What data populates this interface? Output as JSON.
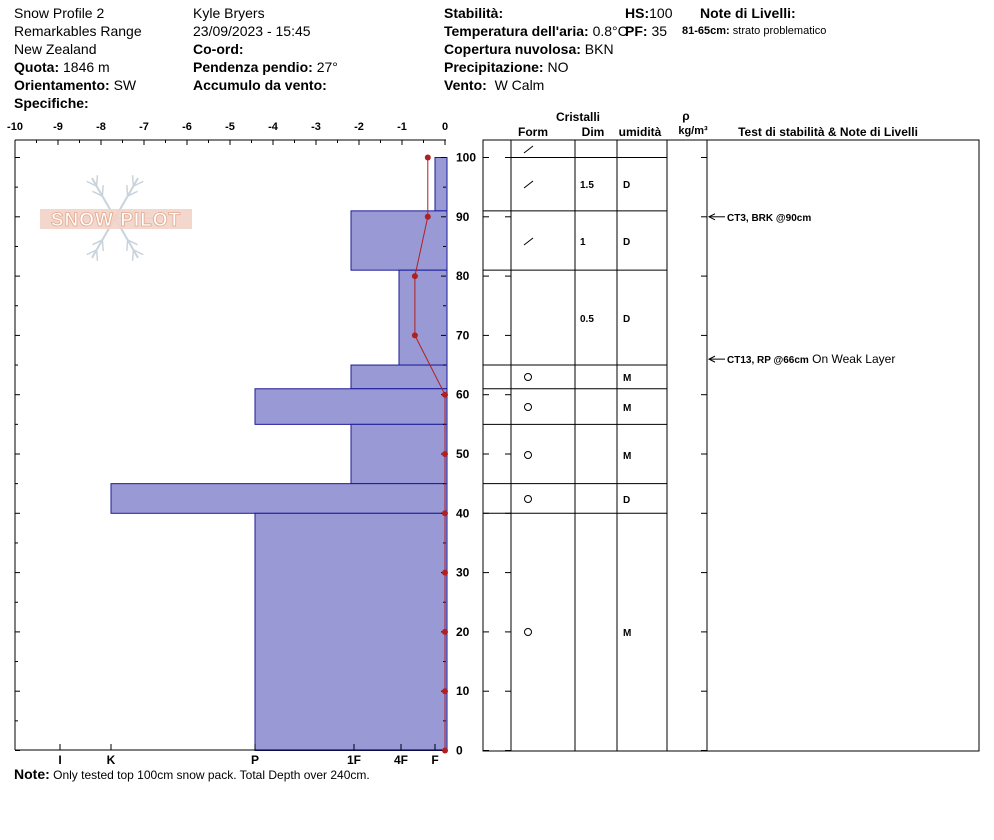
{
  "header": {
    "profile_name": "Snow Profile 2",
    "location": "Remarkables Range",
    "country": "New Zealand",
    "quota_label": "Quota:",
    "quota_value": "1846 m",
    "orient_label": "Orientamento:",
    "orient_value": "SW",
    "specifiche_label": "Specifiche:",
    "observer": "Kyle Bryers",
    "datetime": "23/09/2023 - 15:45",
    "coord_label": "Co-ord:",
    "slope_label": "Pendenza pendio:",
    "slope_value": "27°",
    "wind_load_label": "Accumulo da vento:",
    "stability_label": "Stabilità:",
    "air_temp_label": "Temperatura dell'aria:",
    "air_temp_value": "0.8°C",
    "cloud_label": "Copertura nuvolosa:",
    "cloud_value": "BKN",
    "precip_label": "Precipitazione:",
    "precip_value": "NO",
    "wind_label": "Vento:",
    "wind_value": "W Calm",
    "hs_label": "HS:",
    "hs_value": "100",
    "pf_label": "PF:",
    "pf_value": "35",
    "layer_notes_label": "Note di Livelli:",
    "layer_note_range": "81-65cm:",
    "layer_note_text": "strato problematico"
  },
  "watermark": "SNOW PILOT",
  "note_label": "Note:",
  "note_text": "Only tested top 100cm snow pack. Total Depth over 240cm.",
  "table_headers": {
    "crystals": "Cristalli",
    "form": "Form",
    "size": "Dim",
    "moisture": "umidità",
    "rho": "ρ",
    "density_unit": "kg/m³",
    "tests": "Test di stabilità & Note di Livelli"
  },
  "colors": {
    "hardness_fill": "#9999d6",
    "hardness_stroke": "#1a1a99",
    "temp_line": "#b02020"
  },
  "chart_data": {
    "type": "snow_profile",
    "temp_axis": {
      "ticks": [
        "-10",
        "-9",
        "-8",
        "-7",
        "-6",
        "-5",
        "-4",
        "-3",
        "-2",
        "-1",
        "0"
      ],
      "range": [
        -10,
        0
      ]
    },
    "height_axis": {
      "ticks": [
        "100",
        "90",
        "80",
        "70",
        "60",
        "50",
        "40",
        "30",
        "20",
        "10",
        "0"
      ],
      "range": [
        0,
        100
      ]
    },
    "hardness_labels": [
      "I",
      "K",
      "P",
      "1F",
      "4F",
      "F"
    ],
    "hardness_layers": [
      {
        "top": 100,
        "bottom": 91,
        "hardness": "F"
      },
      {
        "top": 91,
        "bottom": 81,
        "hardness": "1F+"
      },
      {
        "top": 81,
        "bottom": 65,
        "hardness": "4F-"
      },
      {
        "top": 65,
        "bottom": 61,
        "hardness": "1F+"
      },
      {
        "top": 61,
        "bottom": 55,
        "hardness": "P"
      },
      {
        "top": 55,
        "bottom": 45,
        "hardness": "1F+"
      },
      {
        "top": 45,
        "bottom": 40,
        "hardness": "K"
      },
      {
        "top": 40,
        "bottom": 0,
        "hardness": "P"
      }
    ],
    "temperature_profile": [
      {
        "h": 100,
        "t": -0.4
      },
      {
        "h": 90,
        "t": -0.4
      },
      {
        "h": 80,
        "t": -0.7
      },
      {
        "h": 70,
        "t": -0.7
      },
      {
        "h": 60,
        "t": 0
      },
      {
        "h": 50,
        "t": 0
      },
      {
        "h": 40,
        "t": 0
      },
      {
        "h": 30,
        "t": 0
      },
      {
        "h": 20,
        "t": 0
      },
      {
        "h": 10,
        "t": 0
      },
      {
        "h": 0,
        "t": 0
      }
    ],
    "crystal_rows": [
      {
        "form": "precip-particle",
        "size": "",
        "moisture": ""
      },
      {
        "form": "precip-particle",
        "size": "1.5",
        "moisture": "D"
      },
      {
        "form": "precip-particle",
        "size": "1",
        "moisture": "D"
      },
      {
        "form": "",
        "size": "0.5",
        "moisture": "D"
      },
      {
        "form": "rounded-grain",
        "size": "",
        "moisture": "M"
      },
      {
        "form": "rounded-grain",
        "size": "",
        "moisture": "M"
      },
      {
        "form": "rounded-grain",
        "size": "",
        "moisture": "M"
      },
      {
        "form": "rounded-grain",
        "size": "",
        "moisture": "D"
      },
      {
        "form": "rounded-grain",
        "size": "",
        "moisture": "M"
      }
    ],
    "stability_tests": [
      {
        "height": 90,
        "label": "CT3, BRK @90cm",
        "comment": ""
      },
      {
        "height": 66,
        "label": "CT13, RP @66cm",
        "comment": "On Weak Layer"
      }
    ]
  }
}
